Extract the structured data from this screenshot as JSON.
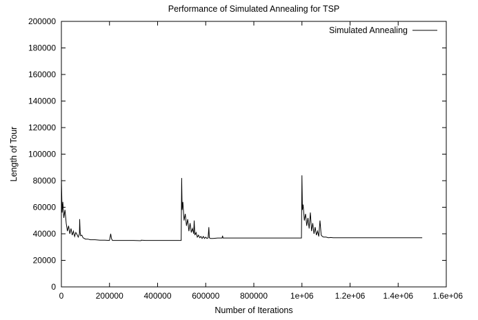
{
  "chart_data": {
    "type": "line",
    "title": "Performance of Simulated Annealing for TSP",
    "xlabel": "Number of Iterations",
    "ylabel": "Length of Tour",
    "xlim": [
      0,
      1600000
    ],
    "ylim": [
      0,
      200000
    ],
    "x_ticks": [
      0,
      200000,
      400000,
      600000,
      800000,
      1000000,
      1200000,
      1400000,
      1600000
    ],
    "x_tick_labels": [
      "0",
      "200000",
      "400000",
      "600000",
      "800000",
      "1e+06",
      "1.2e+06",
      "1.4e+06",
      "1.6e+06"
    ],
    "y_ticks": [
      0,
      20000,
      40000,
      60000,
      80000,
      100000,
      120000,
      140000,
      160000,
      180000,
      200000
    ],
    "y_tick_labels": [
      "0",
      "20000",
      "40000",
      "60000",
      "80000",
      "100000",
      "120000",
      "140000",
      "160000",
      "180000",
      "200000"
    ],
    "grid": false,
    "legend_position": "top-right",
    "series": [
      {
        "name": "Simulated Annealing",
        "color": "#000000",
        "x": [
          0,
          3000,
          6000,
          10000,
          15000,
          20000,
          25000,
          30000,
          35000,
          40000,
          45000,
          50000,
          55000,
          60000,
          65000,
          70000,
          75000,
          76000,
          78000,
          80000,
          85000,
          90000,
          95000,
          100000,
          110000,
          120000,
          140000,
          160000,
          180000,
          200000,
          205000,
          208000,
          212000,
          220000,
          250000,
          300000,
          330000,
          332000,
          350000,
          400000,
          450000,
          498000,
          500000,
          502000,
          505000,
          510000,
          515000,
          520000,
          525000,
          530000,
          535000,
          540000,
          545000,
          550000,
          552000,
          555000,
          560000,
          565000,
          570000,
          575000,
          580000,
          585000,
          590000,
          595000,
          600000,
          605000,
          610000,
          613000,
          615000,
          620000,
          630000,
          650000,
          668000,
          670000,
          672000,
          700000,
          800000,
          900000,
          998000,
          1000000,
          1002000,
          1005000,
          1010000,
          1015000,
          1020000,
          1025000,
          1030000,
          1035000,
          1040000,
          1045000,
          1050000,
          1055000,
          1060000,
          1065000,
          1070000,
          1075000,
          1080000,
          1085000,
          1090000,
          1100000,
          1110000,
          1120000,
          1130000,
          1150000,
          1200000,
          1300000,
          1400000,
          1500000
        ],
        "y": [
          82000,
          56000,
          64000,
          52000,
          58000,
          48000,
          42000,
          46000,
          40000,
          44000,
          39000,
          42000,
          38000,
          41000,
          39500,
          37500,
          40000,
          51000,
          41000,
          38500,
          39000,
          37000,
          36500,
          36000,
          36000,
          35500,
          35500,
          35200,
          35200,
          35000,
          40000,
          36500,
          35000,
          35000,
          35000,
          35000,
          34800,
          35200,
          35000,
          35000,
          35000,
          35000,
          82000,
          58000,
          64000,
          50000,
          55000,
          46000,
          51000,
          42000,
          48000,
          41000,
          44000,
          40000,
          50000,
          39000,
          41000,
          37500,
          39000,
          37000,
          38000,
          36500,
          38000,
          36500,
          37500,
          36500,
          37000,
          45000,
          37000,
          36500,
          36500,
          36800,
          36800,
          38500,
          36800,
          36800,
          36800,
          36800,
          36800,
          84000,
          58000,
          62000,
          50000,
          55000,
          46000,
          52000,
          44000,
          56000,
          42000,
          48000,
          40000,
          45000,
          39000,
          42000,
          38000,
          50000,
          39000,
          38000,
          37500,
          37500,
          37000,
          37200,
          37000,
          37000,
          37000,
          37000,
          37000,
          37000
        ]
      }
    ]
  }
}
